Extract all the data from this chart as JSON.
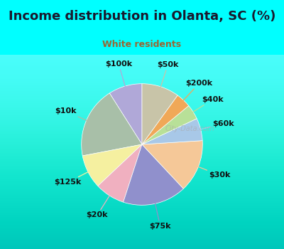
{
  "title": "Income distribution in Olanta, SC (%)",
  "subtitle": "White residents",
  "watermark": "City-Data.com",
  "labels": [
    "$100k",
    "$10k",
    "$125k",
    "$20k",
    "$75k",
    "$30k",
    "$60k",
    "$40k",
    "$200k",
    "$50k"
  ],
  "values": [
    9,
    19,
    9,
    8,
    17,
    14,
    6,
    4,
    4,
    10
  ],
  "colors": [
    "#b0a8d8",
    "#a8bfa8",
    "#f5f0a0",
    "#f0b0c0",
    "#9090cc",
    "#f5c898",
    "#a8c8e8",
    "#b8e098",
    "#f0a858",
    "#c8c4a8"
  ],
  "background_top": "#00ffff",
  "background_chart_color": "#d8efe0",
  "title_color": "#1a1a2e",
  "subtitle_color": "#996633",
  "label_color": "#111111",
  "label_fontsize": 8,
  "startangle": 90,
  "figsize": [
    4.0,
    3.5
  ],
  "dpi": 100,
  "title_fontsize": 13,
  "subtitle_fontsize": 9,
  "watermark_color": "#aaaaaa"
}
